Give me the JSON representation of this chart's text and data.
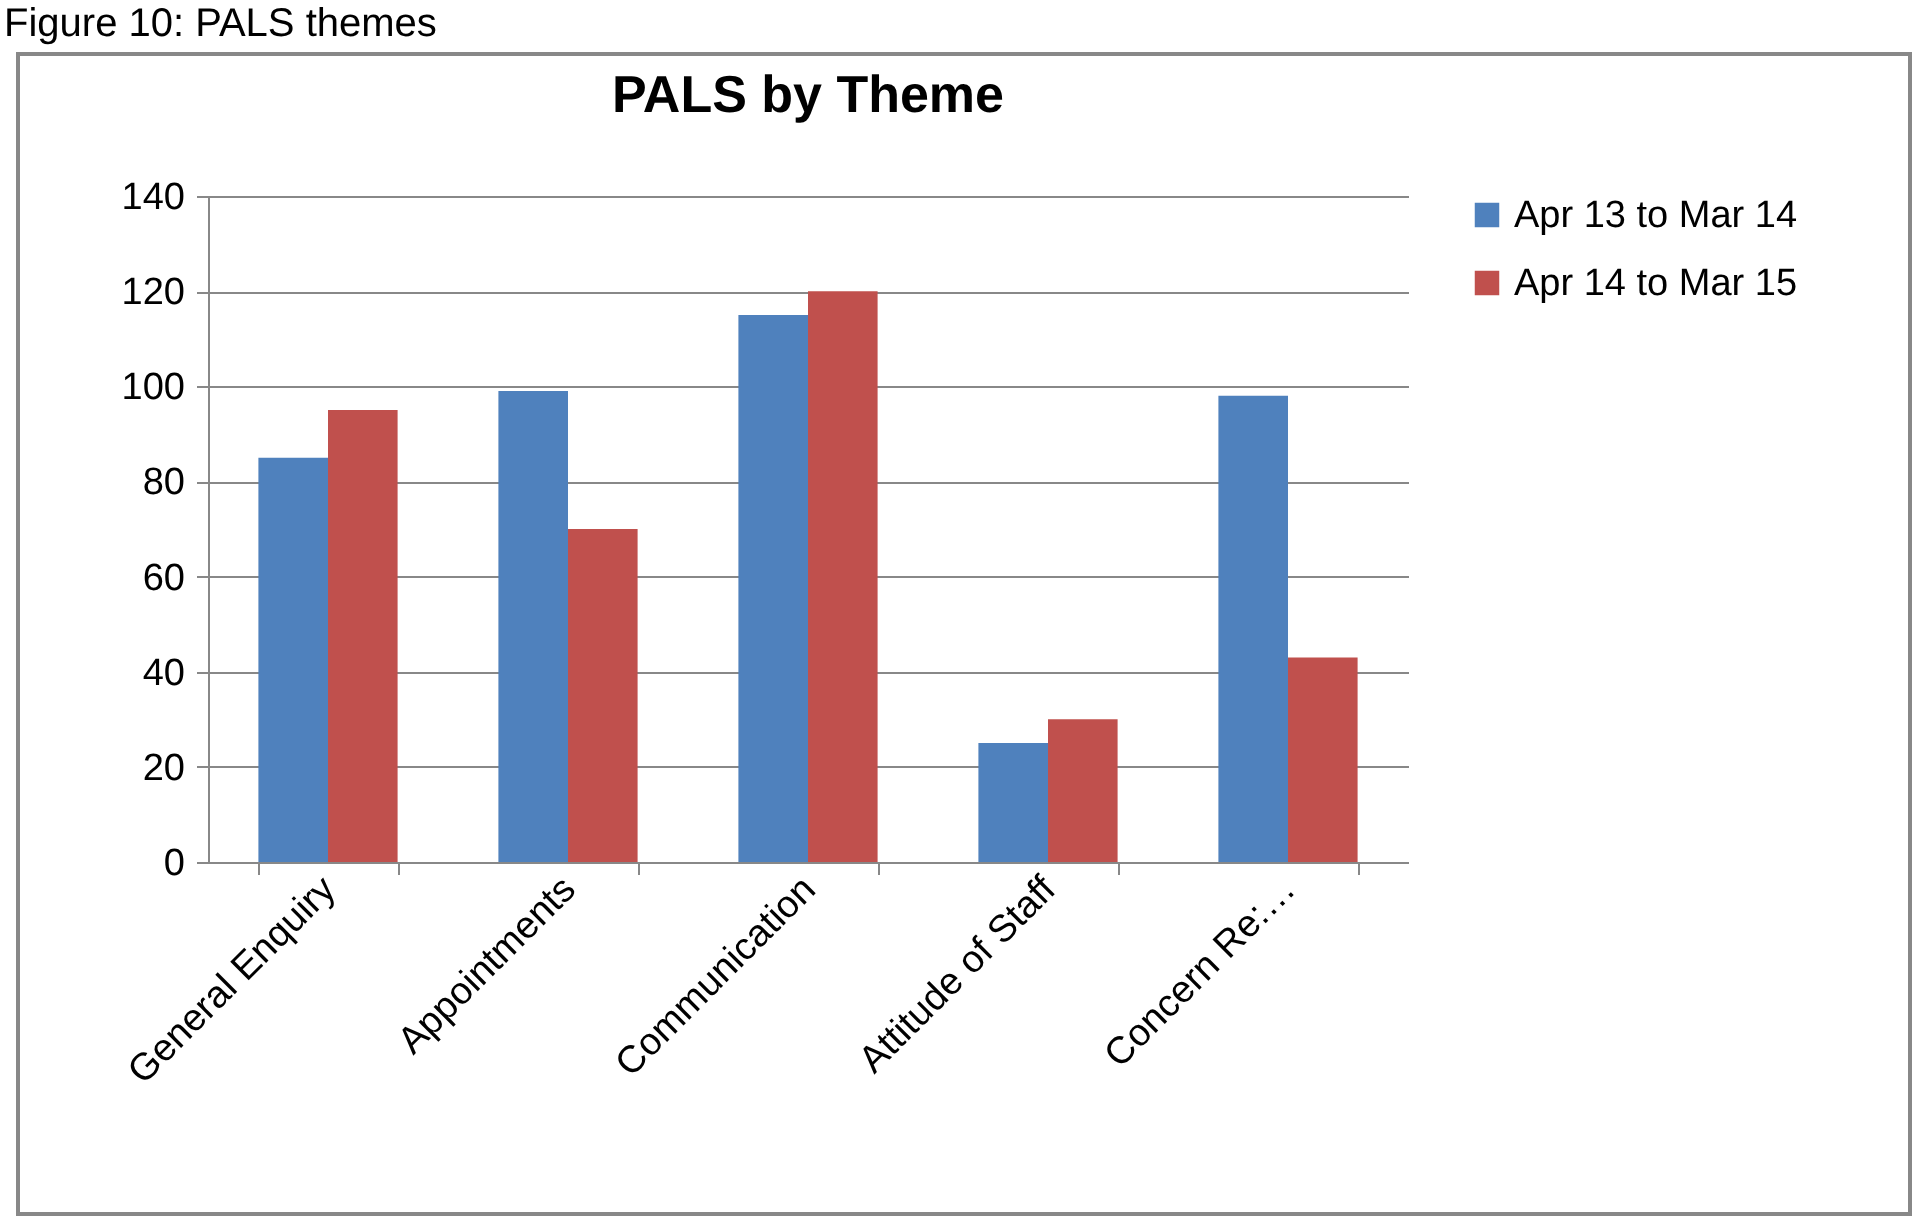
{
  "chart_data": {
    "type": "bar",
    "title": "PALS by Theme",
    "annotations": [
      "Figure 10: PALS themes"
    ],
    "categories": [
      "General Enquiry",
      "Appointments",
      "Communication",
      "Attitude of Staff",
      "Concern Re:…"
    ],
    "series": [
      {
        "name": "Apr 13 to Mar 14",
        "color": "#4f81bd",
        "values": [
          85,
          99,
          115,
          25,
          98
        ]
      },
      {
        "name": "Apr 14 to Mar 15",
        "color": "#c0504d",
        "values": [
          95,
          70,
          120,
          30,
          43
        ]
      }
    ],
    "ylim": [
      0,
      140
    ],
    "yticks": [
      0,
      20,
      40,
      60,
      80,
      100,
      120,
      140
    ],
    "grid": "y",
    "legend": "right"
  }
}
